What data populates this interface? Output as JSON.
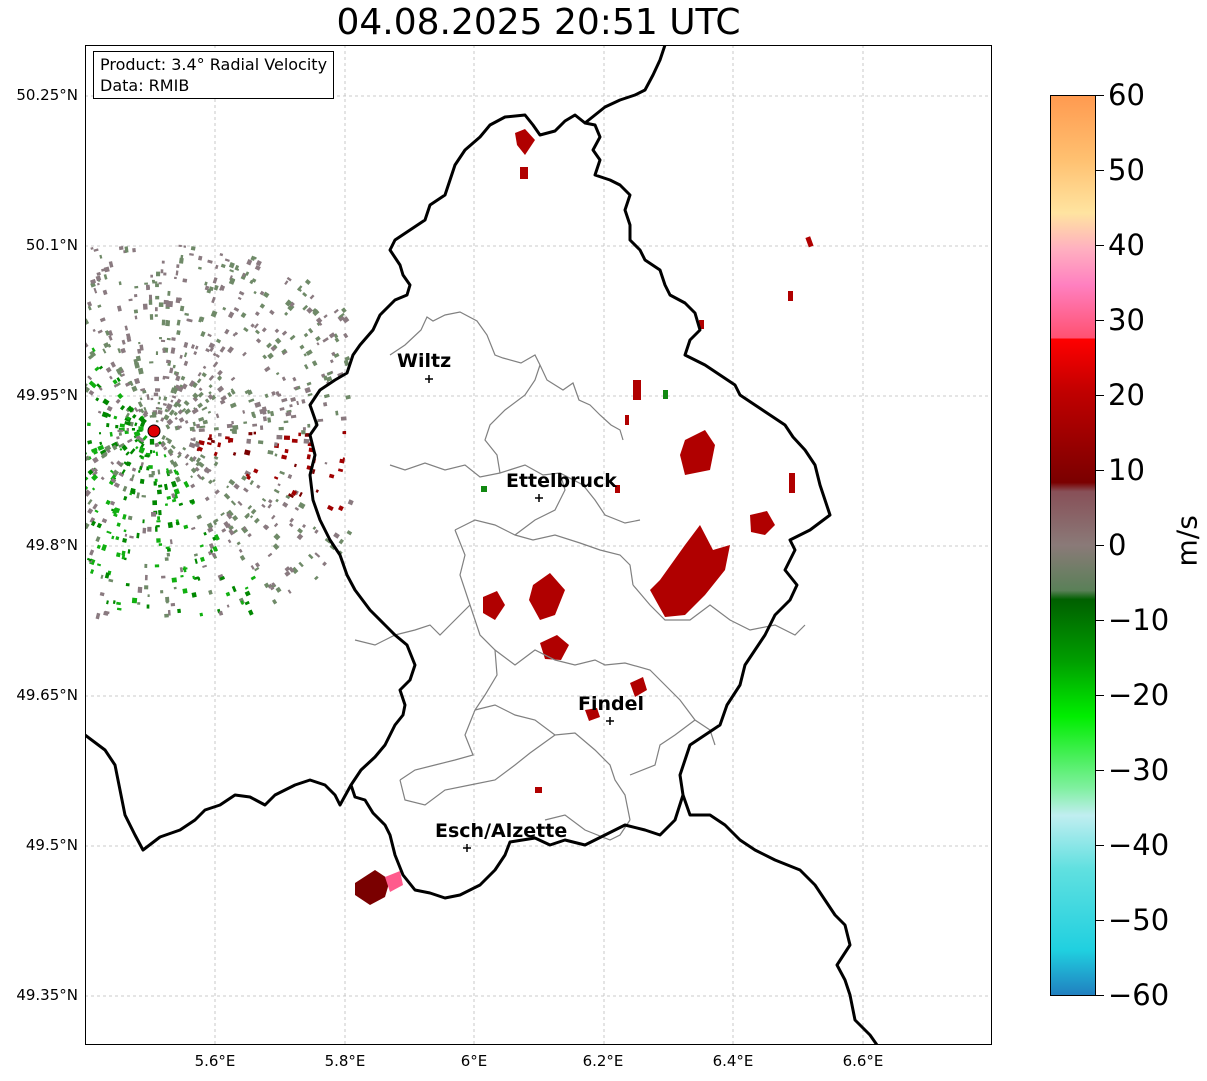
{
  "title": "04.08.2025 20:51 UTC",
  "info_box": {
    "product": "Product: 3.4° Radial Velocity",
    "data_source": "Data: RMIB"
  },
  "axes": {
    "lat_labels": [
      "50.25°N",
      "50.1°N",
      "49.95°N",
      "49.8°N",
      "49.65°N",
      "49.5°N",
      "49.35°N"
    ],
    "lon_labels": [
      "5.6°E",
      "5.8°E",
      "6°E",
      "6.2°E",
      "6.4°E",
      "6.6°E"
    ]
  },
  "cities": [
    {
      "name": "Wiltz"
    },
    {
      "name": "Ettelbruck"
    },
    {
      "name": "Findel"
    },
    {
      "name": "Esch/Alzette"
    }
  ],
  "colorbar": {
    "unit": "m/s",
    "ticks": [
      "60",
      "50",
      "40",
      "30",
      "20",
      "10",
      "0",
      "−10",
      "−20",
      "−30",
      "−40",
      "−50",
      "−60"
    ]
  },
  "colors": {
    "receding": "#b00000",
    "approaching": "#008800",
    "neutral": "#7a8a74",
    "border": "#000000",
    "district": "#808080",
    "radar_marker": "#e00000"
  }
}
